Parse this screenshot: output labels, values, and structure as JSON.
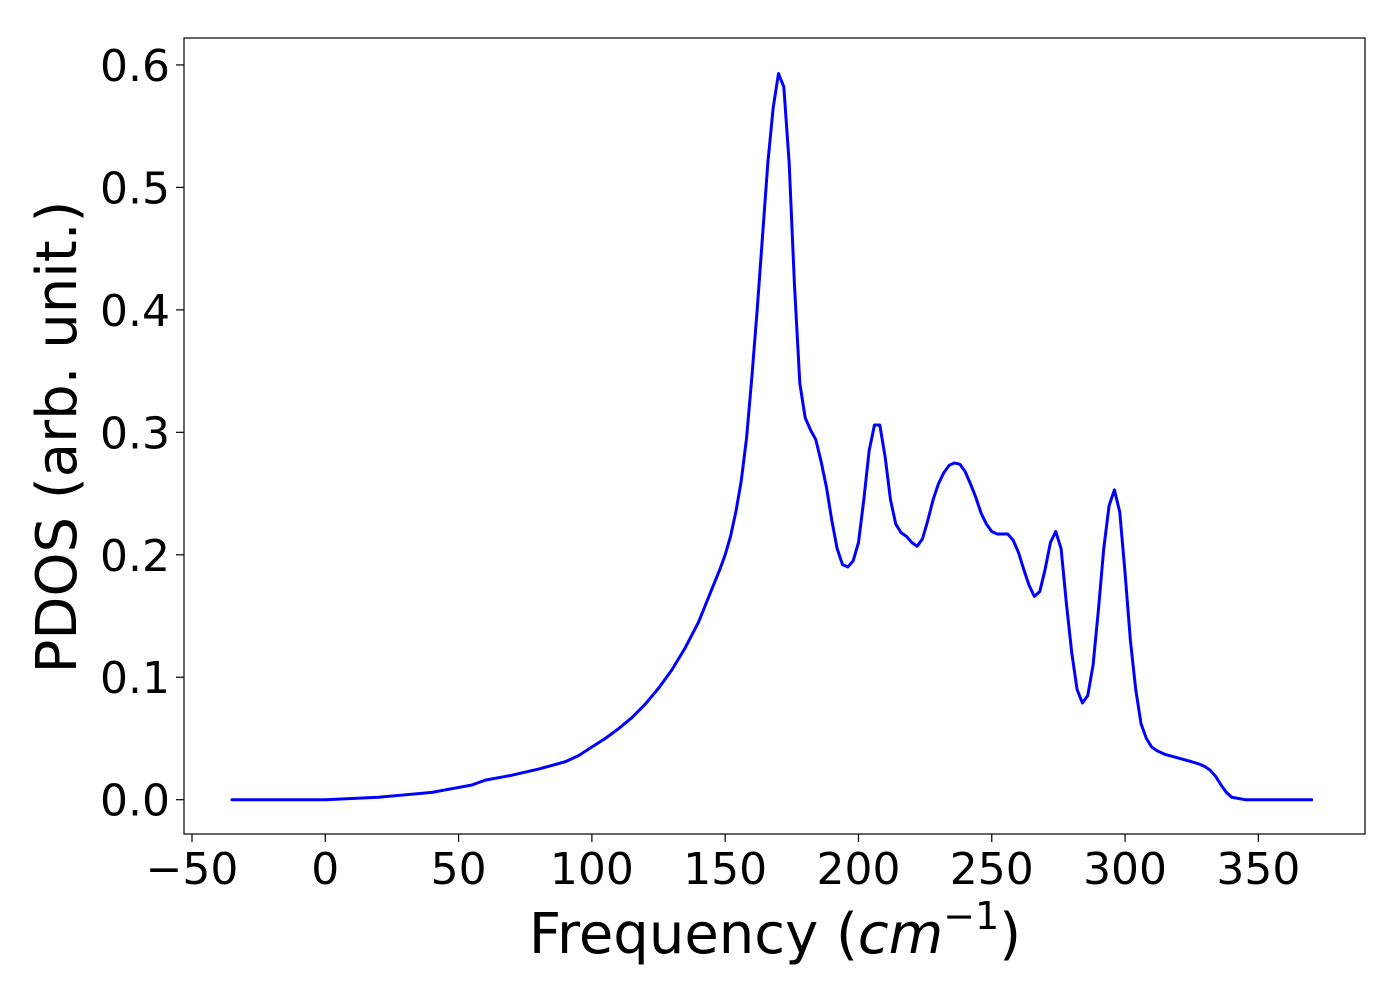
{
  "chart_data": {
    "type": "line",
    "title": "",
    "xlabel": {
      "prefix": "Frequency (",
      "unit": "cm",
      "exponent": "−1",
      "suffix": ")"
    },
    "ylabel": "PDOS (arb. unit.)",
    "xlim": [
      -53,
      390
    ],
    "ylim": [
      -0.028,
      0.622
    ],
    "x_ticks": [
      {
        "value": -50,
        "label": "−50"
      },
      {
        "value": 0,
        "label": "0"
      },
      {
        "value": 50,
        "label": "50"
      },
      {
        "value": 100,
        "label": "100"
      },
      {
        "value": 150,
        "label": "150"
      },
      {
        "value": 200,
        "label": "200"
      },
      {
        "value": 250,
        "label": "250"
      },
      {
        "value": 300,
        "label": "300"
      },
      {
        "value": 350,
        "label": "350"
      }
    ],
    "y_ticks": [
      {
        "value": 0.0,
        "label": "0.0"
      },
      {
        "value": 0.1,
        "label": "0.1"
      },
      {
        "value": 0.2,
        "label": "0.2"
      },
      {
        "value": 0.3,
        "label": "0.3"
      },
      {
        "value": 0.4,
        "label": "0.4"
      },
      {
        "value": 0.5,
        "label": "0.5"
      },
      {
        "value": 0.6,
        "label": "0.6"
      }
    ],
    "grid": false,
    "legend": null,
    "series": [
      {
        "color": "#0000ff",
        "x": [
          -35,
          0,
          10,
          20,
          30,
          40,
          50,
          55,
          60,
          65,
          70,
          80,
          90,
          95,
          100,
          105,
          110,
          115,
          120,
          125,
          130,
          135,
          140,
          145,
          148,
          150,
          152,
          154,
          156,
          158,
          160,
          162,
          164,
          166,
          168,
          170,
          172,
          174,
          176,
          178,
          180,
          182,
          184,
          186,
          188,
          190,
          192,
          194,
          196,
          198,
          200,
          202,
          204,
          206,
          208,
          210,
          212,
          214,
          216,
          218,
          220,
          222,
          224,
          226,
          228,
          230,
          232,
          234,
          236,
          238,
          240,
          242,
          244,
          246,
          248,
          250,
          252,
          254,
          256,
          258,
          260,
          262,
          264,
          266,
          268,
          270,
          272,
          274,
          276,
          278,
          280,
          282,
          284,
          286,
          288,
          290,
          292,
          294,
          296,
          298,
          300,
          302,
          304,
          306,
          308,
          310,
          312,
          315,
          320,
          325,
          328,
          330,
          332,
          334,
          336,
          338,
          340,
          345,
          350,
          360,
          370
        ],
        "y": [
          0.0,
          0.0,
          0.001,
          0.002,
          0.004,
          0.006,
          0.01,
          0.012,
          0.016,
          0.018,
          0.02,
          0.025,
          0.031,
          0.036,
          0.043,
          0.05,
          0.058,
          0.067,
          0.078,
          0.091,
          0.106,
          0.124,
          0.145,
          0.172,
          0.188,
          0.2,
          0.215,
          0.235,
          0.26,
          0.295,
          0.345,
          0.4,
          0.46,
          0.52,
          0.565,
          0.593,
          0.582,
          0.52,
          0.42,
          0.34,
          0.312,
          0.302,
          0.294,
          0.276,
          0.255,
          0.228,
          0.205,
          0.192,
          0.19,
          0.195,
          0.21,
          0.245,
          0.285,
          0.306,
          0.306,
          0.28,
          0.245,
          0.225,
          0.218,
          0.215,
          0.21,
          0.207,
          0.213,
          0.228,
          0.245,
          0.258,
          0.267,
          0.273,
          0.275,
          0.274,
          0.268,
          0.258,
          0.247,
          0.234,
          0.225,
          0.219,
          0.217,
          0.217,
          0.217,
          0.212,
          0.202,
          0.188,
          0.175,
          0.166,
          0.17,
          0.188,
          0.21,
          0.219,
          0.205,
          0.16,
          0.12,
          0.09,
          0.079,
          0.085,
          0.11,
          0.155,
          0.205,
          0.24,
          0.253,
          0.235,
          0.185,
          0.13,
          0.09,
          0.062,
          0.05,
          0.043,
          0.04,
          0.037,
          0.034,
          0.031,
          0.029,
          0.027,
          0.024,
          0.019,
          0.012,
          0.006,
          0.002,
          0.0,
          0.0,
          0.0,
          0.0
        ]
      }
    ]
  }
}
